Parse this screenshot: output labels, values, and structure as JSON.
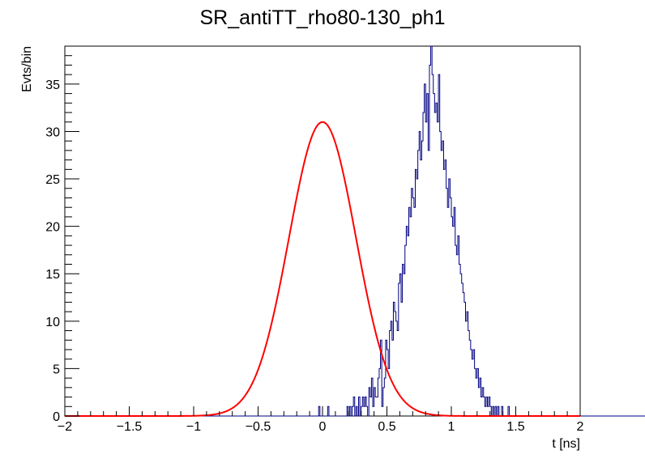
{
  "chart_data": {
    "type": "bar",
    "title": "SR_antiTT_rho80-130_ph1",
    "xlabel": "t [ns]",
    "ylabel": "Evts/bin",
    "xlim": [
      -2,
      2
    ],
    "ylim": [
      0,
      39
    ],
    "xticks": [
      -2,
      -1.5,
      -1,
      -0.5,
      0,
      0.5,
      1,
      1.5,
      2
    ],
    "xtick_labels": [
      "−2",
      "−1.5",
      "−1",
      "−0.5",
      "0",
      "0.5",
      "1",
      "1.5",
      "2"
    ],
    "yticks": [
      0,
      5,
      10,
      15,
      20,
      25,
      30,
      35
    ],
    "ytick_labels": [
      "0",
      "5",
      "10",
      "15",
      "20",
      "25",
      "30",
      "35"
    ],
    "grid": false,
    "legend": "none",
    "bin_width": 0.01,
    "bins_start": -2.0,
    "histogram_counts": [
      0,
      0,
      0,
      0,
      0,
      0,
      0,
      0,
      0,
      0,
      0,
      0,
      0,
      0,
      0,
      0,
      0,
      0,
      0,
      0,
      0,
      0,
      0,
      0,
      0,
      0,
      0,
      0,
      0,
      0,
      0,
      0,
      0,
      0,
      0,
      0,
      0,
      0,
      0,
      0,
      0,
      0,
      0,
      0,
      0,
      0,
      0,
      0,
      0,
      0,
      0,
      0,
      0,
      0,
      0,
      0,
      0,
      0,
      0,
      0,
      0,
      0,
      0,
      0,
      0,
      0,
      0,
      0,
      0,
      0,
      0,
      0,
      0,
      0,
      0,
      0,
      0,
      0,
      0,
      0,
      0,
      0,
      0,
      0,
      0,
      0,
      0,
      0,
      0,
      0,
      0,
      0,
      0,
      0,
      0,
      0,
      0,
      0,
      0,
      0,
      0,
      0,
      0,
      0,
      0,
      0,
      0,
      0,
      0,
      0,
      0,
      0,
      0,
      0,
      0,
      0,
      0,
      0,
      0,
      0,
      0,
      0,
      0,
      0,
      0,
      0,
      0,
      0,
      0,
      0,
      0,
      0,
      0,
      0,
      0,
      0,
      0,
      0,
      0,
      0,
      0,
      0,
      0,
      0,
      0,
      0,
      0,
      0,
      0,
      0,
      0,
      0,
      0,
      0,
      0,
      0,
      0,
      0,
      0,
      0,
      0,
      0,
      0,
      0,
      0,
      0,
      0,
      0,
      0,
      0,
      0,
      0,
      0,
      0,
      0,
      0,
      0,
      0,
      0,
      0,
      0,
      0,
      0,
      0,
      0,
      0,
      0,
      0,
      0,
      0,
      0,
      0,
      0,
      0,
      0,
      0,
      0,
      1,
      0,
      0,
      0,
      0,
      0,
      0,
      1,
      0,
      0,
      0,
      0,
      0,
      0,
      0,
      0,
      0,
      0,
      0,
      0,
      0,
      0,
      1,
      0,
      1,
      0,
      1,
      2,
      0,
      1,
      0,
      2,
      0,
      1,
      2,
      1,
      2,
      1,
      0,
      3,
      2,
      4,
      1,
      3,
      2,
      2,
      4,
      5,
      8,
      1,
      3,
      4,
      8,
      7,
      5,
      9,
      10,
      8,
      12,
      11,
      10,
      9,
      14,
      15,
      12,
      16,
      15,
      18,
      20,
      19,
      22,
      21,
      24,
      23,
      22,
      26,
      25,
      28,
      30,
      27,
      29,
      32,
      35,
      31,
      34,
      28,
      37,
      39,
      36,
      34,
      32,
      33,
      31,
      36,
      30,
      28,
      29,
      26,
      27,
      24,
      22,
      25,
      23,
      21,
      20,
      22,
      18,
      17,
      19,
      16,
      15,
      14,
      13,
      12,
      10,
      11,
      9,
      8,
      7,
      6,
      7,
      5,
      4,
      5,
      3,
      4,
      2,
      3,
      2,
      1,
      2,
      1,
      2,
      1,
      0,
      1,
      0,
      1,
      0,
      1,
      0,
      0,
      1,
      0,
      0,
      0,
      0,
      1,
      0,
      0,
      0,
      0,
      0,
      0,
      0,
      0,
      0,
      0,
      0,
      0,
      0,
      0,
      0,
      0,
      0,
      0,
      0,
      0,
      0,
      0,
      0,
      0,
      0,
      0,
      0,
      0,
      0,
      0,
      0,
      0,
      0,
      0,
      0,
      0,
      0,
      0,
      0,
      0,
      0,
      0,
      0,
      0,
      0,
      0,
      0,
      0,
      0,
      0,
      0,
      0,
      0,
      0,
      0,
      0,
      0,
      0,
      0,
      0,
      0,
      0,
      0,
      0,
      0,
      0,
      0,
      0,
      0,
      0,
      0,
      0,
      0,
      0,
      0,
      0,
      0,
      0,
      0,
      0,
      0,
      0,
      0,
      0,
      0,
      0,
      0,
      0,
      0,
      0,
      0,
      0,
      0,
      0,
      0,
      0,
      0,
      0,
      0,
      0,
      0,
      0,
      0,
      0,
      0,
      0,
      0,
      0,
      0,
      0,
      0,
      0,
      0,
      0,
      0,
      0,
      0,
      0,
      0,
      0,
      0,
      0,
      0,
      0,
      0,
      0,
      0,
      0,
      0,
      0,
      0,
      0,
      0,
      0,
      0,
      0,
      0,
      0,
      0,
      0,
      0,
      0,
      0,
      0,
      0,
      0,
      0,
      0,
      0,
      0,
      0,
      0,
      0,
      0,
      0,
      0,
      0,
      0,
      0
    ],
    "fit": {
      "type": "gaussian",
      "amplitude": 31.0,
      "mean": 0.0,
      "sigma": 0.26
    },
    "colors": {
      "histogram": "#000080",
      "fit": "#ff0000",
      "axes": "#000000",
      "background": "#ffffff"
    }
  }
}
